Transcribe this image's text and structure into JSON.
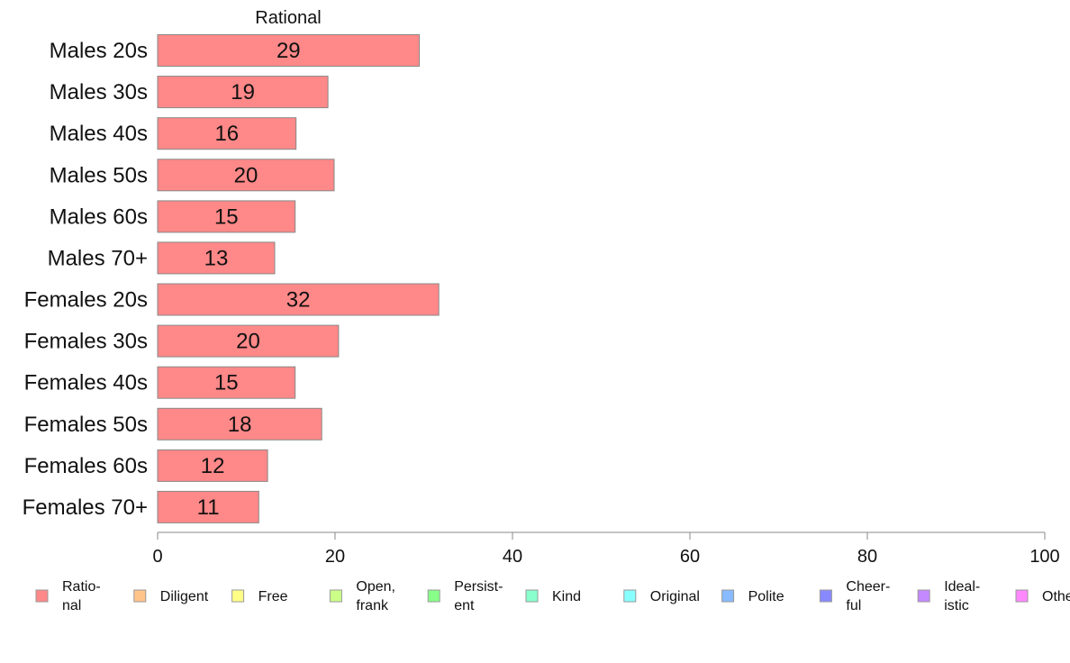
{
  "chart_data": {
    "type": "bar",
    "orientation": "horizontal",
    "title": "Rational",
    "categories": [
      "Males 20s",
      "Males 30s",
      "Males 40s",
      "Males 50s",
      "Males 60s",
      "Males 70+",
      "Females 20s",
      "Females 30s",
      "Females 40s",
      "Females 50s",
      "Females 60s",
      "Females 70+"
    ],
    "series": [
      {
        "name": "Ratio-\nnal",
        "color": "#ff8888",
        "values": [
          29.5,
          19.2,
          15.6,
          19.9,
          15.5,
          13.2,
          31.7,
          20.4,
          15.5,
          18.5,
          12.4,
          11.4
        ],
        "labels": [
          "29",
          "19",
          "16",
          "20",
          "15",
          "13",
          "32",
          "20",
          "15",
          "18",
          "12",
          "11"
        ]
      }
    ],
    "xlim": [
      0,
      100
    ],
    "xticks": [
      0,
      20,
      40,
      60,
      80,
      100
    ],
    "grid": false,
    "legend": {
      "placement": "bottom",
      "entries": [
        {
          "label": "Ratio-\nnal",
          "color": "#ff8888"
        },
        {
          "label": "Diligent",
          "color": "#ffc489"
        },
        {
          "label": "Free",
          "color": "#ffff88"
        },
        {
          "label": "Open,\nfrank",
          "color": "#ccff88"
        },
        {
          "label": "Persist-\nent",
          "color": "#88ff88"
        },
        {
          "label": "Kind",
          "color": "#88ffcc"
        },
        {
          "label": "Original",
          "color": "#88ffff"
        },
        {
          "label": "Polite",
          "color": "#88bbff"
        },
        {
          "label": "Cheer-\nful",
          "color": "#8888ff"
        },
        {
          "label": "Ideal-\nistic",
          "color": "#c488ff"
        },
        {
          "label": "Othe",
          "color": "#ff88ff"
        }
      ]
    }
  }
}
